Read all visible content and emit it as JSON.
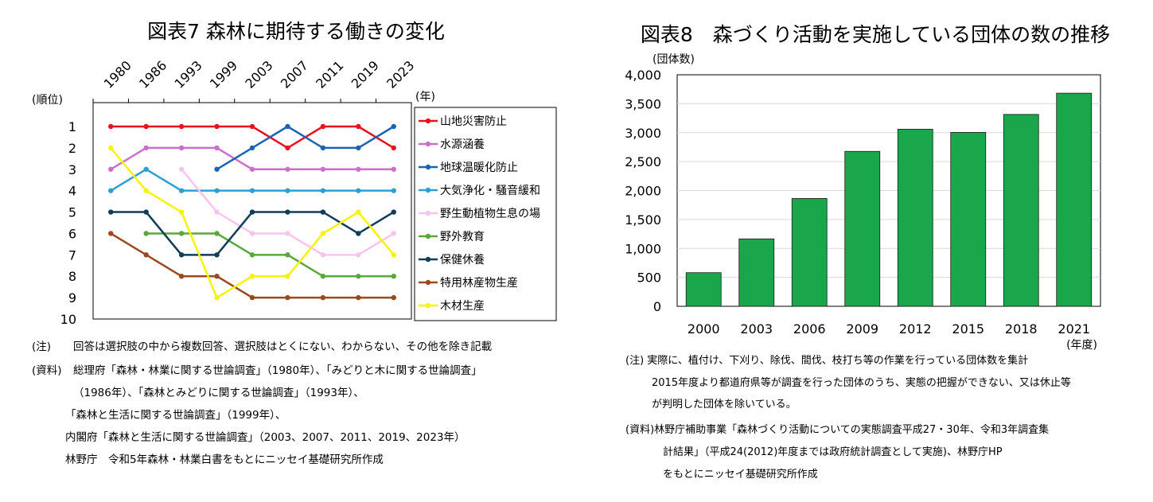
{
  "chart_data": [
    {
      "type": "line",
      "title": "図表7 森林に期待する働きの変化",
      "y_unit": "(順位)",
      "x_unit": "(年)",
      "x": [
        "1980",
        "1986",
        "1993",
        "1999",
        "2003",
        "2007",
        "2011",
        "2019",
        "2023"
      ],
      "y_ticks": [
        "1",
        "2",
        "3",
        "4",
        "5",
        "6",
        "7",
        "8",
        "9",
        "10"
      ],
      "ylim": [
        1,
        10
      ],
      "y_reversed": true,
      "legend_position": "right",
      "series": [
        {
          "name": "山地災害防止",
          "color": "#e8141c",
          "values": [
            1,
            1,
            1,
            1,
            1,
            2,
            1,
            1,
            2
          ]
        },
        {
          "name": "水源涵養",
          "color": "#cc6fcc",
          "values": [
            3,
            2,
            2,
            2,
            3,
            3,
            3,
            3,
            3
          ]
        },
        {
          "name": "地球温暖化防止",
          "color": "#1a64b4",
          "values": [
            null,
            null,
            null,
            3,
            2,
            1,
            2,
            2,
            1
          ]
        },
        {
          "name": "大気浄化・騒音緩和",
          "color": "#2aa0d4",
          "values": [
            4,
            3,
            4,
            4,
            4,
            4,
            4,
            4,
            4
          ]
        },
        {
          "name": "野生動植物生息の場",
          "color": "#f8c4ee",
          "values": [
            null,
            null,
            3,
            5,
            6,
            6,
            7,
            7,
            6
          ]
        },
        {
          "name": "野外教育",
          "color": "#5aa83c",
          "values": [
            null,
            6,
            6,
            6,
            7,
            7,
            8,
            8,
            8
          ]
        },
        {
          "name": "保健休養",
          "color": "#0f3d5a",
          "values": [
            5,
            5,
            7,
            7,
            5,
            5,
            5,
            6,
            5
          ]
        },
        {
          "name": "特用林産物生産",
          "color": "#9a4a1e",
          "values": [
            6,
            7,
            8,
            8,
            9,
            9,
            9,
            9,
            9
          ]
        },
        {
          "name": "木材生産",
          "color": "#f5f500",
          "values": [
            2,
            4,
            5,
            9,
            8,
            8,
            6,
            5,
            7
          ]
        }
      ],
      "notes": [
        {
          "label": "(注)",
          "text": "回答は選択肢の中から複数回答、選択肢はとくにない、わからない、その他を除き記載"
        },
        {
          "label": "(資料)",
          "text": "総理府「森林・林業に関する世論調査」（1980年）、「みどりと木に関する世論調査」"
        },
        {
          "label": "",
          "text": "（1986年）、「森林とみどりに関する世論調査」（1993年）、"
        },
        {
          "label": "",
          "text": "「森林と生活に関する世論調査」（1999年）、"
        },
        {
          "label": "",
          "text": "内閣府「森林と生活に関する世論調査」（2003、2007、2011、2019、2023年）"
        },
        {
          "label": "",
          "text": "林野庁　令和5年森林・林業白書をもとにニッセイ基礎研究所作成"
        }
      ]
    },
    {
      "type": "bar",
      "title": "図表8　森づくり活動を実施している団体の数の推移",
      "y_unit": "(団体数)",
      "x_unit": "(年度)",
      "categories": [
        "2000",
        "2003",
        "2006",
        "2009",
        "2012",
        "2015",
        "2018",
        "2021"
      ],
      "values": [
        581,
        1165,
        1863,
        2677,
        3060,
        3005,
        3315,
        3682
      ],
      "y_ticks": [
        "0",
        "500",
        "1,000",
        "1,500",
        "2,000",
        "2,500",
        "3,000",
        "3,500",
        "4,000"
      ],
      "ylim": [
        0,
        4000
      ],
      "bar_color": "#1aa64a",
      "notes": [
        "(注) 実際に、植付け、下刈り、除伐、間伐、枝打ち等の作業を行っている団体数を集計",
        "2015年度より都道府県等が調査を行った団体のうち、実態の把握ができない、又は休止等",
        "が判明した団体を除いている。",
        "(資料)林野庁補助事業「森林づくり活動についての実態調査平成27・30年、令和3年調査集",
        "計結果」（平成24(2012)年度までは政府統計調査として実施)、林野庁HP",
        "をもとにニッセイ基礎研究所作成"
      ]
    }
  ]
}
